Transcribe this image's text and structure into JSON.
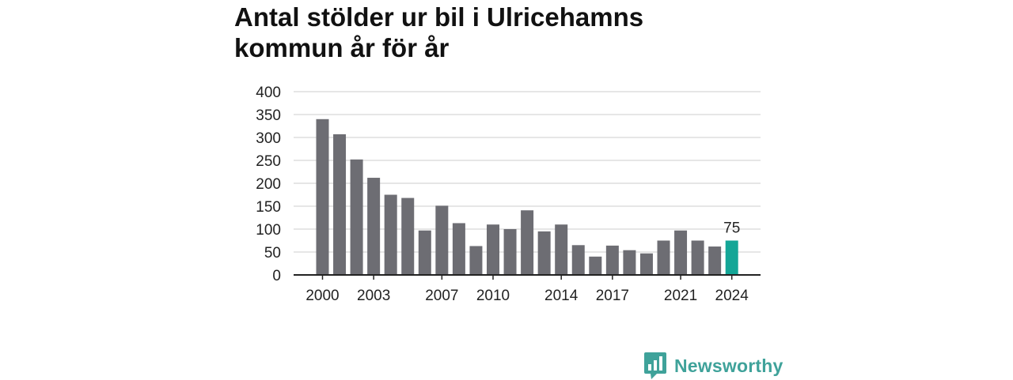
{
  "title": "Antal stölder ur bil i Ulricehamns kommun år för år",
  "brand": {
    "name": "Newsworthy",
    "icon": "newsworthy-logo-icon"
  },
  "colors": {
    "bar": "#6d6d73",
    "highlight": "#14a697",
    "grid": "#dedede",
    "axis": "#222222",
    "text": "#222222"
  },
  "chart_data": {
    "type": "bar",
    "title": "Antal stölder ur bil i Ulricehamns kommun år för år",
    "xlabel": "",
    "ylabel": "",
    "categories": [
      "2000",
      "2001",
      "2002",
      "2003",
      "2004",
      "2005",
      "2006",
      "2007",
      "2008",
      "2009",
      "2010",
      "2011",
      "2012",
      "2013",
      "2014",
      "2015",
      "2016",
      "2017",
      "2018",
      "2019",
      "2020",
      "2021",
      "2022",
      "2023",
      "2024"
    ],
    "x_tick_labels": [
      "2000",
      "2003",
      "2007",
      "2010",
      "2014",
      "2017",
      "2021",
      "2024"
    ],
    "values": [
      340,
      307,
      252,
      212,
      175,
      168,
      97,
      151,
      113,
      63,
      110,
      100,
      141,
      95,
      110,
      65,
      40,
      64,
      54,
      47,
      75,
      97,
      75,
      62,
      75
    ],
    "highlight_index": 24,
    "highlight_label": "75",
    "ylim": [
      0,
      400
    ],
    "yticks": [
      0,
      50,
      100,
      150,
      200,
      250,
      300,
      350,
      400
    ],
    "grid": true
  }
}
